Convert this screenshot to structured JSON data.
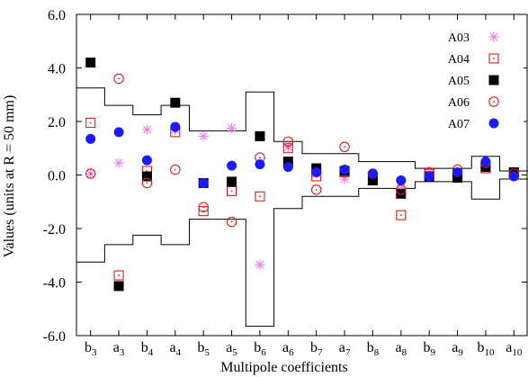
{
  "chart_data": {
    "type": "scatter",
    "title": "",
    "xlabel": "Multipole coefficients",
    "ylabel": "Values (units at R = 50 mm)",
    "ylim": [
      -6.0,
      6.0
    ],
    "yticks": [
      "-6.0",
      "-4.0",
      "-2.0",
      "0.0",
      "2.0",
      "4.0",
      "6.0"
    ],
    "ytick_values": [
      -6,
      -4,
      -2,
      0,
      2,
      4,
      6
    ],
    "categories": [
      {
        "base": "b",
        "sub": "3"
      },
      {
        "base": "a",
        "sub": "3"
      },
      {
        "base": "b",
        "sub": "4"
      },
      {
        "base": "a",
        "sub": "4"
      },
      {
        "base": "b",
        "sub": "5"
      },
      {
        "base": "a",
        "sub": "5"
      },
      {
        "base": "b",
        "sub": "6"
      },
      {
        "base": "a",
        "sub": "6"
      },
      {
        "base": "b",
        "sub": "7"
      },
      {
        "base": "a",
        "sub": "7"
      },
      {
        "base": "b",
        "sub": "8"
      },
      {
        "base": "a",
        "sub": "8"
      },
      {
        "base": "b",
        "sub": "9"
      },
      {
        "base": "a",
        "sub": "9"
      },
      {
        "base": "b",
        "sub": "10"
      },
      {
        "base": "a",
        "sub": "10"
      }
    ],
    "legend_position": "top-right",
    "grid": false,
    "series": [
      {
        "name": "A03",
        "marker": "asterisk",
        "color": "#ee82ee",
        "values": [
          0.05,
          0.45,
          1.7,
          1.7,
          1.45,
          1.75,
          -3.35,
          1.05,
          0.05,
          -0.15,
          -0.2,
          -0.5,
          0.1,
          0.05,
          0.3,
          0.05
        ]
      },
      {
        "name": "A04",
        "marker": "open-square",
        "color": "#e41a1c",
        "values": [
          1.95,
          -3.75,
          0.15,
          1.6,
          -1.35,
          -0.6,
          -0.8,
          1.0,
          -0.05,
          0.1,
          -0.2,
          -1.5,
          0.05,
          0.05,
          0.25,
          0.1
        ]
      },
      {
        "name": "A05",
        "marker": "filled-square",
        "color": "#000000",
        "values": [
          4.2,
          -4.15,
          -0.05,
          2.7,
          -0.3,
          -0.25,
          1.45,
          0.5,
          0.25,
          0.15,
          -0.2,
          -0.7,
          -0.05,
          -0.1,
          0.3,
          0.1
        ]
      },
      {
        "name": "A06",
        "marker": "open-circle",
        "color": "#e41a1c",
        "values": [
          0.05,
          3.6,
          -0.3,
          0.2,
          -1.2,
          -1.75,
          0.65,
          1.25,
          -0.55,
          1.05,
          0.05,
          -0.55,
          0.1,
          0.2,
          0.45,
          0.05
        ]
      },
      {
        "name": "A07",
        "marker": "filled-circle",
        "color": "#1a1aff",
        "values": [
          1.35,
          1.6,
          0.55,
          1.8,
          -0.3,
          0.35,
          0.4,
          0.3,
          0.1,
          0.2,
          0.05,
          -0.2,
          -0.05,
          0.1,
          0.5,
          -0.05
        ]
      }
    ],
    "bands": {
      "upper": [
        3.25,
        2.6,
        2.25,
        2.6,
        1.65,
        1.65,
        3.1,
        1.25,
        0.8,
        0.8,
        0.5,
        0.5,
        0.25,
        0.25,
        0.7,
        0.15
      ],
      "lower": [
        -3.25,
        -2.6,
        -2.25,
        -2.6,
        -1.65,
        -1.65,
        -5.65,
        -1.25,
        -0.8,
        -0.8,
        -0.5,
        -0.5,
        -0.25,
        -0.25,
        -0.9,
        -0.15
      ]
    }
  }
}
